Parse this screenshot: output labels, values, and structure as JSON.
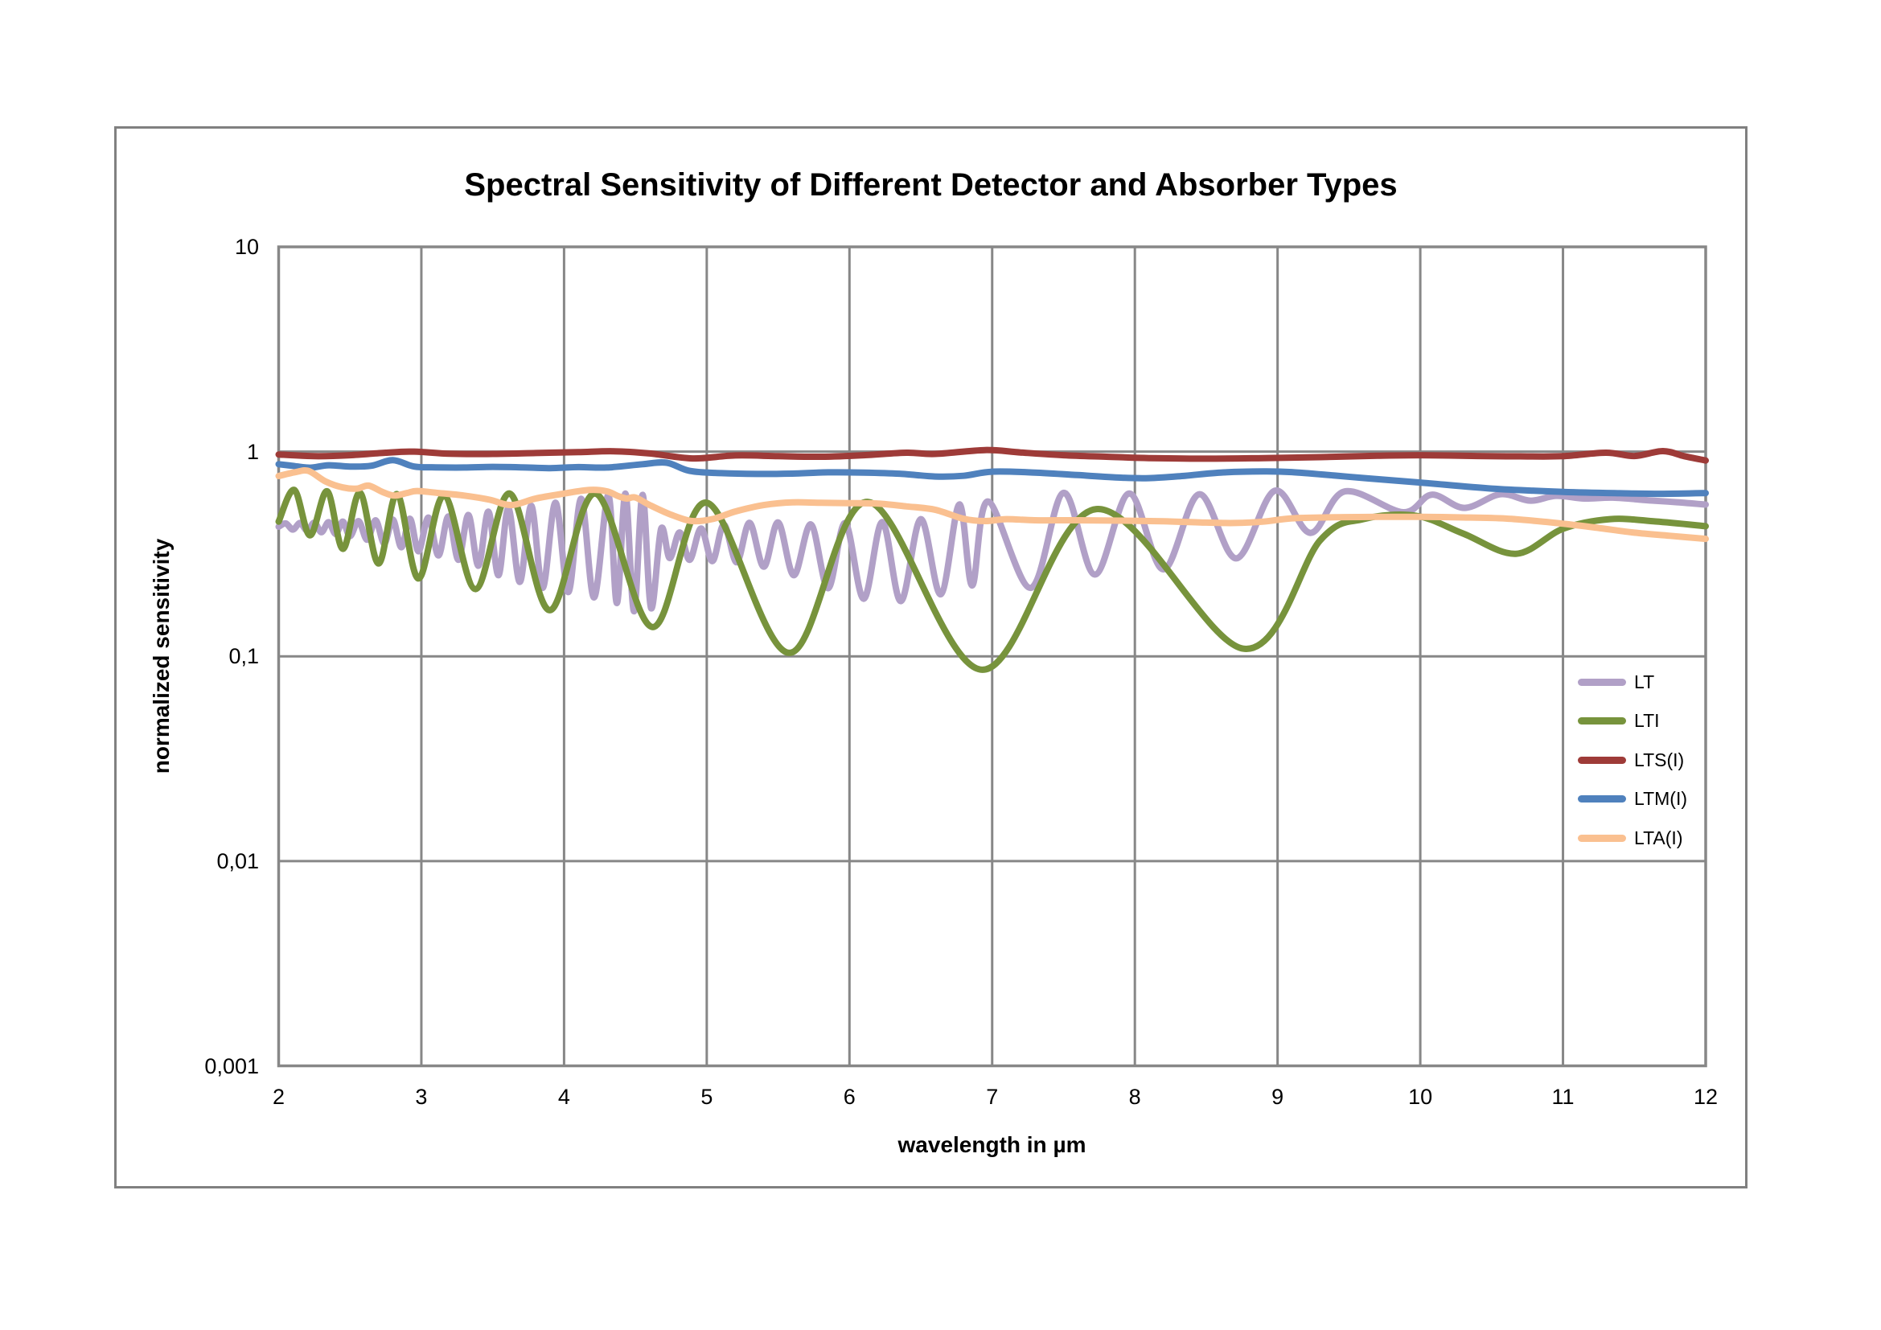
{
  "chart_data": {
    "type": "line",
    "title": "Spectral Sensitivity of Different Detector and Absorber Types",
    "xlabel": "wavelength in µm",
    "ylabel": "normalized sensitivity",
    "xlim": [
      2,
      12
    ],
    "ylim": [
      0.001,
      10
    ],
    "y_scale": "log",
    "grid": true,
    "grid_color": "#878787",
    "legend_position": "inside-right",
    "x_ticks": [
      {
        "v": 2,
        "label": "2"
      },
      {
        "v": 3,
        "label": "3"
      },
      {
        "v": 4,
        "label": "4"
      },
      {
        "v": 5,
        "label": "5"
      },
      {
        "v": 6,
        "label": "6"
      },
      {
        "v": 7,
        "label": "7"
      },
      {
        "v": 8,
        "label": "8"
      },
      {
        "v": 9,
        "label": "9"
      },
      {
        "v": 10,
        "label": "10"
      },
      {
        "v": 11,
        "label": "11"
      },
      {
        "v": 12,
        "label": "12"
      }
    ],
    "y_ticks": [
      {
        "v": 10,
        "label": "10"
      },
      {
        "v": 1,
        "label": "1"
      },
      {
        "v": 0.1,
        "label": "0,1"
      },
      {
        "v": 0.01,
        "label": "0,01"
      },
      {
        "v": 0.001,
        "label": "0,001"
      }
    ],
    "series": [
      {
        "name": "LT",
        "color": "#b1a0c7",
        "points": [
          [
            2.0,
            0.43
          ],
          [
            2.05,
            0.446
          ],
          [
            2.1,
            0.416
          ],
          [
            2.15,
            0.448
          ],
          [
            2.2,
            0.411
          ],
          [
            2.25,
            0.45
          ],
          [
            2.3,
            0.404
          ],
          [
            2.35,
            0.452
          ],
          [
            2.4,
            0.396
          ],
          [
            2.45,
            0.455
          ],
          [
            2.5,
            0.386
          ],
          [
            2.56,
            0.458
          ],
          [
            2.62,
            0.371
          ],
          [
            2.68,
            0.462
          ],
          [
            2.74,
            0.356
          ],
          [
            2.8,
            0.466
          ],
          [
            2.86,
            0.341
          ],
          [
            2.92,
            0.47
          ],
          [
            2.98,
            0.326
          ],
          [
            3.05,
            0.476
          ],
          [
            3.12,
            0.311
          ],
          [
            3.19,
            0.482
          ],
          [
            3.26,
            0.296
          ],
          [
            3.33,
            0.49
          ],
          [
            3.4,
            0.277
          ],
          [
            3.47,
            0.509
          ],
          [
            3.54,
            0.249
          ],
          [
            3.61,
            0.528
          ],
          [
            3.69,
            0.231
          ],
          [
            3.77,
            0.544
          ],
          [
            3.85,
            0.216
          ],
          [
            3.94,
            0.563
          ],
          [
            4.03,
            0.206
          ],
          [
            4.12,
            0.588
          ],
          [
            4.21,
            0.194
          ],
          [
            4.31,
            0.612
          ],
          [
            4.37,
            0.182
          ],
          [
            4.43,
            0.624
          ],
          [
            4.49,
            0.166
          ],
          [
            4.55,
            0.615
          ],
          [
            4.61,
            0.172
          ],
          [
            4.68,
            0.42
          ],
          [
            4.74,
            0.302
          ],
          [
            4.81,
            0.403
          ],
          [
            4.88,
            0.296
          ],
          [
            4.96,
            0.421
          ],
          [
            5.04,
            0.292
          ],
          [
            5.12,
            0.44
          ],
          [
            5.21,
            0.288
          ],
          [
            5.3,
            0.449
          ],
          [
            5.4,
            0.274
          ],
          [
            5.5,
            0.451
          ],
          [
            5.61,
            0.249
          ],
          [
            5.73,
            0.441
          ],
          [
            5.85,
            0.215
          ],
          [
            5.97,
            0.448
          ],
          [
            6.1,
            0.191
          ],
          [
            6.23,
            0.453
          ],
          [
            6.36,
            0.186
          ],
          [
            6.5,
            0.468
          ],
          [
            6.64,
            0.201
          ],
          [
            6.77,
            0.552
          ],
          [
            6.86,
            0.222
          ],
          [
            6.97,
            0.571
          ],
          [
            7.27,
            0.216
          ],
          [
            7.5,
            0.629
          ],
          [
            7.72,
            0.251
          ],
          [
            7.96,
            0.624
          ],
          [
            8.2,
            0.266
          ],
          [
            8.45,
            0.619
          ],
          [
            8.71,
            0.301
          ],
          [
            8.98,
            0.644
          ],
          [
            9.23,
            0.401
          ],
          [
            9.47,
            0.639
          ],
          [
            9.88,
            0.506
          ],
          [
            10.08,
            0.616
          ],
          [
            10.31,
            0.531
          ],
          [
            10.56,
            0.619
          ],
          [
            10.77,
            0.576
          ],
          [
            10.95,
            0.608
          ],
          [
            11.15,
            0.59
          ],
          [
            11.35,
            0.596
          ],
          [
            11.6,
            0.578
          ],
          [
            11.8,
            0.566
          ],
          [
            12.0,
            0.551
          ]
        ]
      },
      {
        "name": "LTI",
        "color": "#77933c",
        "points": [
          [
            2.0,
            0.455
          ],
          [
            2.11,
            0.65
          ],
          [
            2.22,
            0.39
          ],
          [
            2.34,
            0.64
          ],
          [
            2.45,
            0.335
          ],
          [
            2.57,
            0.63
          ],
          [
            2.7,
            0.284
          ],
          [
            2.83,
            0.62
          ],
          [
            2.98,
            0.24
          ],
          [
            3.16,
            0.61
          ],
          [
            3.38,
            0.213
          ],
          [
            3.62,
            0.624
          ],
          [
            3.9,
            0.168
          ],
          [
            4.22,
            0.624
          ],
          [
            4.62,
            0.139
          ],
          [
            5.0,
            0.563
          ],
          [
            5.58,
            0.104
          ],
          [
            6.13,
            0.568
          ],
          [
            6.93,
            0.086
          ],
          [
            7.73,
            0.524
          ],
          [
            8.76,
            0.109
          ],
          [
            9.3,
            0.37
          ],
          [
            9.6,
            0.468
          ],
          [
            9.97,
            0.486
          ],
          [
            10.3,
            0.398
          ],
          [
            10.67,
            0.317
          ],
          [
            11.0,
            0.42
          ],
          [
            11.33,
            0.468
          ],
          [
            11.65,
            0.456
          ],
          [
            12.0,
            0.432
          ]
        ]
      },
      {
        "name": "LTS(I)",
        "color": "#9e3b38",
        "points": [
          [
            2.0,
            0.968
          ],
          [
            2.25,
            0.95
          ],
          [
            2.5,
            0.96
          ],
          [
            2.75,
            0.988
          ],
          [
            2.95,
            1.0
          ],
          [
            3.2,
            0.976
          ],
          [
            3.5,
            0.974
          ],
          [
            3.8,
            0.984
          ],
          [
            4.1,
            0.994
          ],
          [
            4.35,
            1.004
          ],
          [
            4.6,
            0.98
          ],
          [
            4.9,
            0.926
          ],
          [
            5.2,
            0.958
          ],
          [
            5.5,
            0.95
          ],
          [
            5.8,
            0.944
          ],
          [
            6.1,
            0.96
          ],
          [
            6.4,
            0.988
          ],
          [
            6.6,
            0.974
          ],
          [
            6.95,
            1.018
          ],
          [
            7.2,
            0.99
          ],
          [
            7.5,
            0.96
          ],
          [
            7.8,
            0.944
          ],
          [
            8.1,
            0.93
          ],
          [
            8.5,
            0.924
          ],
          [
            8.9,
            0.93
          ],
          [
            9.3,
            0.94
          ],
          [
            9.7,
            0.954
          ],
          [
            10.0,
            0.96
          ],
          [
            10.4,
            0.952
          ],
          [
            10.7,
            0.948
          ],
          [
            11.0,
            0.95
          ],
          [
            11.3,
            0.988
          ],
          [
            11.5,
            0.952
          ],
          [
            11.7,
            1.006
          ],
          [
            11.85,
            0.95
          ],
          [
            12.0,
            0.905
          ]
        ]
      },
      {
        "name": "LTM(I)",
        "color": "#4f81bd",
        "points": [
          [
            2.0,
            0.868
          ],
          [
            2.1,
            0.852
          ],
          [
            2.22,
            0.835
          ],
          [
            2.35,
            0.858
          ],
          [
            2.5,
            0.845
          ],
          [
            2.65,
            0.853
          ],
          [
            2.8,
            0.908
          ],
          [
            2.95,
            0.845
          ],
          [
            3.1,
            0.838
          ],
          [
            3.3,
            0.836
          ],
          [
            3.5,
            0.842
          ],
          [
            3.7,
            0.838
          ],
          [
            3.9,
            0.83
          ],
          [
            4.1,
            0.84
          ],
          [
            4.3,
            0.836
          ],
          [
            4.55,
            0.868
          ],
          [
            4.72,
            0.882
          ],
          [
            4.88,
            0.805
          ],
          [
            5.1,
            0.785
          ],
          [
            5.35,
            0.778
          ],
          [
            5.6,
            0.781
          ],
          [
            5.85,
            0.792
          ],
          [
            6.1,
            0.79
          ],
          [
            6.35,
            0.78
          ],
          [
            6.6,
            0.756
          ],
          [
            6.8,
            0.762
          ],
          [
            7.0,
            0.798
          ],
          [
            7.3,
            0.79
          ],
          [
            7.6,
            0.768
          ],
          [
            7.9,
            0.746
          ],
          [
            8.1,
            0.742
          ],
          [
            8.35,
            0.762
          ],
          [
            8.6,
            0.79
          ],
          [
            8.9,
            0.8
          ],
          [
            9.1,
            0.794
          ],
          [
            9.4,
            0.764
          ],
          [
            9.63,
            0.74
          ],
          [
            10.0,
            0.706
          ],
          [
            10.5,
            0.66
          ],
          [
            11.0,
            0.636
          ],
          [
            11.4,
            0.626
          ],
          [
            11.7,
            0.622
          ],
          [
            12.0,
            0.627
          ]
        ]
      },
      {
        "name": "LTA(I)",
        "color": "#fac090",
        "points": [
          [
            2.0,
            0.76
          ],
          [
            2.12,
            0.794
          ],
          [
            2.21,
            0.804
          ],
          [
            2.33,
            0.714
          ],
          [
            2.45,
            0.668
          ],
          [
            2.55,
            0.66
          ],
          [
            2.63,
            0.682
          ],
          [
            2.73,
            0.634
          ],
          [
            2.81,
            0.61
          ],
          [
            2.9,
            0.628
          ],
          [
            2.97,
            0.642
          ],
          [
            3.12,
            0.628
          ],
          [
            3.3,
            0.61
          ],
          [
            3.48,
            0.582
          ],
          [
            3.63,
            0.548
          ],
          [
            3.8,
            0.59
          ],
          [
            4.0,
            0.624
          ],
          [
            4.18,
            0.65
          ],
          [
            4.3,
            0.64
          ],
          [
            4.38,
            0.606
          ],
          [
            4.44,
            0.59
          ],
          [
            4.5,
            0.597
          ],
          [
            4.6,
            0.548
          ],
          [
            4.75,
            0.492
          ],
          [
            4.9,
            0.458
          ],
          [
            5.05,
            0.47
          ],
          [
            5.2,
            0.51
          ],
          [
            5.4,
            0.548
          ],
          [
            5.6,
            0.565
          ],
          [
            5.8,
            0.562
          ],
          [
            6.0,
            0.56
          ],
          [
            6.2,
            0.557
          ],
          [
            6.4,
            0.54
          ],
          [
            6.6,
            0.52
          ],
          [
            6.8,
            0.47
          ],
          [
            6.95,
            0.458
          ],
          [
            7.1,
            0.468
          ],
          [
            7.3,
            0.462
          ],
          [
            7.6,
            0.462
          ],
          [
            7.9,
            0.46
          ],
          [
            8.2,
            0.457
          ],
          [
            8.5,
            0.45
          ],
          [
            8.7,
            0.448
          ],
          [
            8.9,
            0.455
          ],
          [
            9.1,
            0.472
          ],
          [
            9.4,
            0.478
          ],
          [
            9.7,
            0.48
          ],
          [
            10.0,
            0.48
          ],
          [
            10.3,
            0.477
          ],
          [
            10.6,
            0.471
          ],
          [
            10.9,
            0.452
          ],
          [
            11.2,
            0.428
          ],
          [
            11.5,
            0.402
          ],
          [
            11.75,
            0.388
          ],
          [
            12.0,
            0.375
          ]
        ]
      }
    ]
  }
}
